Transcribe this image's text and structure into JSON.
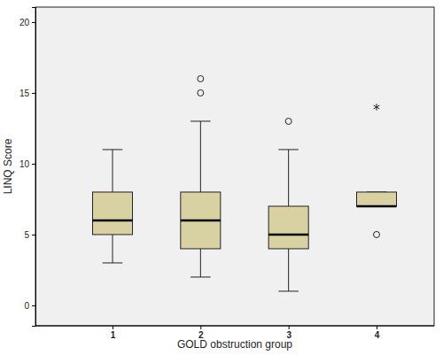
{
  "chart_data": {
    "type": "box",
    "x_label": "GOLD obstruction group",
    "y_label": "LINQ Score",
    "categories": [
      "1",
      "2",
      "3",
      "4"
    ],
    "whisker_low": [
      3,
      2,
      1,
      7
    ],
    "q1": [
      5,
      4,
      4,
      7
    ],
    "median": [
      6,
      6,
      5,
      7
    ],
    "q3": [
      8,
      8,
      7,
      8
    ],
    "whisker_high": [
      11,
      13,
      11,
      8
    ],
    "outliers": [
      [],
      [
        15,
        16
      ],
      [
        13
      ],
      [
        5
      ]
    ],
    "extremes": [
      [],
      [],
      [],
      [
        14
      ]
    ],
    "color": "#d8d1a2",
    "ylim": [
      -1.44,
      21.06
    ],
    "yticks": [
      0,
      5,
      10,
      15,
      20
    ],
    "grid": false
  }
}
